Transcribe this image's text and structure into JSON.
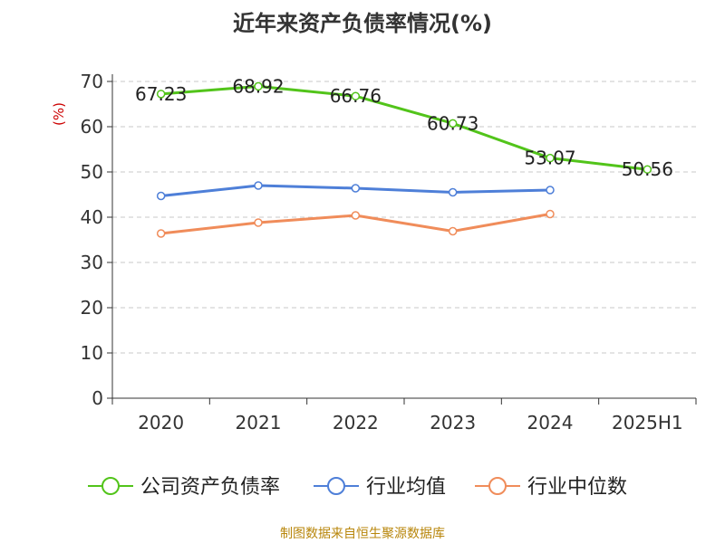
{
  "chart_data": {
    "type": "line",
    "title": "近年来资产负债率情况(%)",
    "ylabel": "(%)",
    "xlabel": "",
    "ylim": [
      0,
      70
    ],
    "yticks": [
      0,
      10,
      20,
      30,
      40,
      50,
      60,
      70
    ],
    "categories": [
      "2020",
      "2021",
      "2022",
      "2023",
      "2024",
      "2025H1"
    ],
    "grid": true,
    "legend_position": "bottom",
    "series": [
      {
        "name": "公司资产负债率",
        "color": "#52c41a",
        "values": [
          67.23,
          68.92,
          66.76,
          60.73,
          53.07,
          50.56
        ],
        "labels": [
          "67.23",
          "68.92",
          "66.76",
          "60.73",
          "53.07",
          "50.56"
        ]
      },
      {
        "name": "行业均值",
        "color": "#4e7fd8",
        "values": [
          44.7,
          47.0,
          46.4,
          45.5,
          46.0,
          null
        ]
      },
      {
        "name": "行业中位数",
        "color": "#f08c5a",
        "values": [
          36.4,
          38.8,
          40.4,
          36.9,
          40.7,
          null
        ]
      }
    ]
  },
  "source": "制图数据来自恒生聚源数据库"
}
